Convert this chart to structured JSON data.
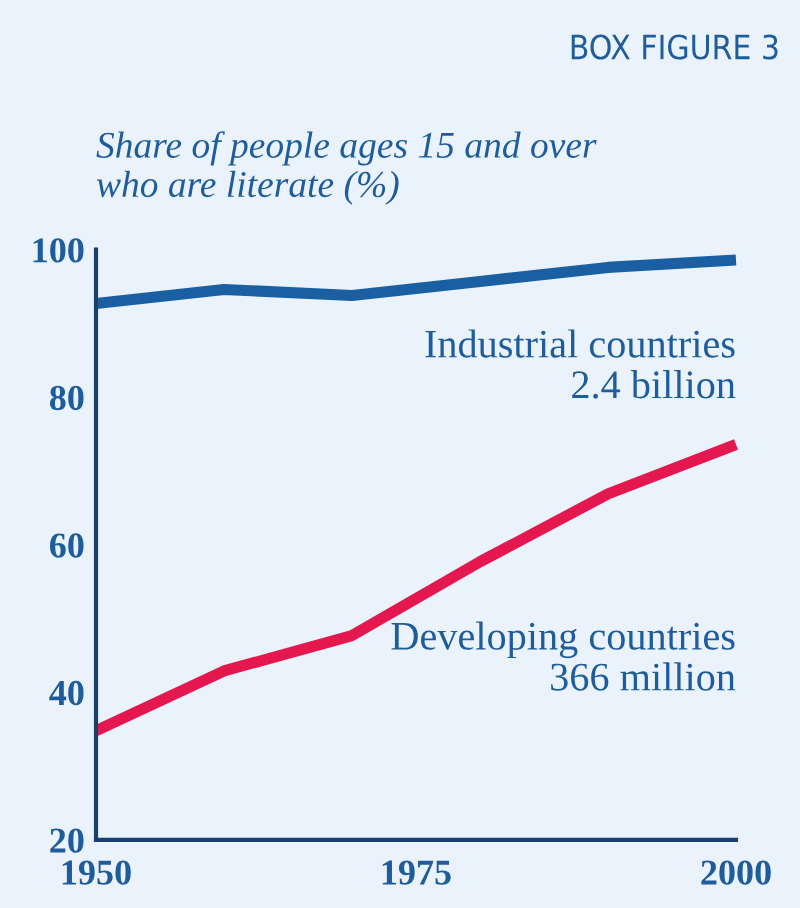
{
  "chart_data": {
    "type": "line",
    "title": "BOX FIGURE 3",
    "subtitle": "Share of people ages 15 and over\nwho are literate (%)",
    "x": [
      1950,
      1960,
      1970,
      1980,
      1990,
      2000
    ],
    "series": [
      {
        "color": "#1b5fa3",
        "values": [
          92.7,
          94.6,
          93.8,
          95.7,
          97.6,
          98.6
        ]
      },
      {
        "color": "#e5174f",
        "values": [
          34.8,
          42.9,
          47.7,
          57.7,
          66.9,
          73.6
        ]
      }
    ],
    "annotations": [
      "Industrial countries\n2.4 billion",
      "Developing countries\n366 million"
    ],
    "xlim": [
      1950,
      2000
    ],
    "xticks": [
      1950,
      1975,
      2000
    ],
    "ylim": [
      20,
      100
    ],
    "yticks": [
      20,
      40,
      60,
      80,
      100
    ],
    "grid": false,
    "legend": false,
    "marker": "none",
    "line_style": "solid"
  }
}
